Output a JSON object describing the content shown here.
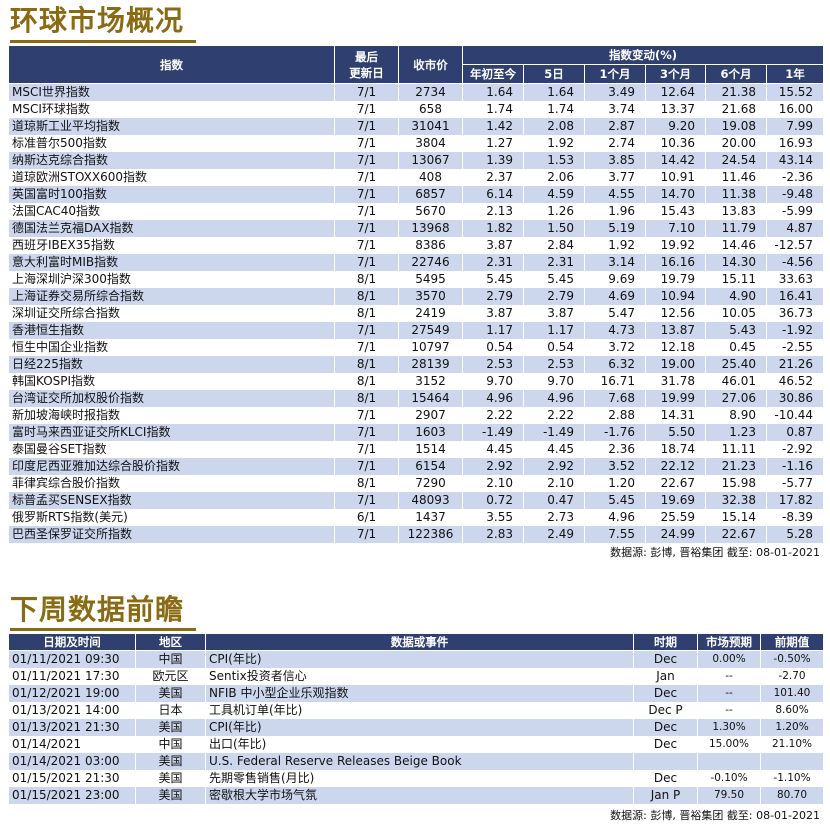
{
  "section1": {
    "title": "环球市场概况",
    "headers": {
      "index": "指数",
      "last_update": "最后\n更新日",
      "close": "收市价",
      "change_group": "指数变动(%)",
      "periods": [
        "年初至今",
        "5日",
        "1个月",
        "3个月",
        "6个月",
        "1年"
      ]
    },
    "rows": [
      {
        "name": "MSCI世界指数",
        "date": "7/1",
        "close": "2734",
        "v": [
          "1.64",
          "1.64",
          "3.49",
          "12.64",
          "21.38",
          "15.52"
        ]
      },
      {
        "name": "MSCI环球指数",
        "date": "7/1",
        "close": "658",
        "v": [
          "1.74",
          "1.74",
          "3.74",
          "13.37",
          "21.68",
          "16.00"
        ]
      },
      {
        "name": "道琼斯工业平均指数",
        "date": "7/1",
        "close": "31041",
        "v": [
          "1.42",
          "2.08",
          "2.87",
          "9.20",
          "19.08",
          "7.99"
        ]
      },
      {
        "name": "标准普尔500指数",
        "date": "7/1",
        "close": "3804",
        "v": [
          "1.27",
          "1.92",
          "2.74",
          "10.36",
          "20.00",
          "16.93"
        ]
      },
      {
        "name": "纳斯达克综合指数",
        "date": "7/1",
        "close": "13067",
        "v": [
          "1.39",
          "1.53",
          "3.85",
          "14.42",
          "24.54",
          "43.14"
        ]
      },
      {
        "name": "道琼欧洲STOXX600指数",
        "date": "7/1",
        "close": "408",
        "v": [
          "2.37",
          "2.06",
          "3.77",
          "10.91",
          "11.46",
          "-2.36"
        ]
      },
      {
        "name": "英国富时100指数",
        "date": "7/1",
        "close": "6857",
        "v": [
          "6.14",
          "4.59",
          "4.55",
          "14.70",
          "11.38",
          "-9.48"
        ]
      },
      {
        "name": "法国CAC40指数",
        "date": "7/1",
        "close": "5670",
        "v": [
          "2.13",
          "1.26",
          "1.96",
          "15.43",
          "13.83",
          "-5.99"
        ]
      },
      {
        "name": "德国法兰克福DAX指数",
        "date": "7/1",
        "close": "13968",
        "v": [
          "1.82",
          "1.50",
          "5.19",
          "7.10",
          "11.79",
          "4.87"
        ]
      },
      {
        "name": "西班牙IBEX35指数",
        "date": "7/1",
        "close": "8386",
        "v": [
          "3.87",
          "2.84",
          "1.92",
          "19.92",
          "14.46",
          "-12.57"
        ]
      },
      {
        "name": "意大利富时MIB指数",
        "date": "7/1",
        "close": "22746",
        "v": [
          "2.31",
          "2.31",
          "3.14",
          "16.16",
          "14.30",
          "-4.56"
        ]
      },
      {
        "name": "上海深圳沪深300指数",
        "date": "8/1",
        "close": "5495",
        "v": [
          "5.45",
          "5.45",
          "9.69",
          "19.79",
          "15.11",
          "33.63"
        ]
      },
      {
        "name": "上海证券交易所综合指数",
        "date": "8/1",
        "close": "3570",
        "v": [
          "2.79",
          "2.79",
          "4.69",
          "10.94",
          "4.90",
          "16.41"
        ]
      },
      {
        "name": "深圳证交所综合指数",
        "date": "8/1",
        "close": "2419",
        "v": [
          "3.87",
          "3.87",
          "5.47",
          "12.56",
          "10.05",
          "36.73"
        ]
      },
      {
        "name": "香港恒生指数",
        "date": "7/1",
        "close": "27549",
        "v": [
          "1.17",
          "1.17",
          "4.73",
          "13.87",
          "5.43",
          "-1.92"
        ]
      },
      {
        "name": "恒生中国企业指数",
        "date": "7/1",
        "close": "10797",
        "v": [
          "0.54",
          "0.54",
          "3.72",
          "12.18",
          "0.45",
          "-2.55"
        ]
      },
      {
        "name": "日经225指数",
        "date": "8/1",
        "close": "28139",
        "v": [
          "2.53",
          "2.53",
          "6.32",
          "19.00",
          "25.40",
          "21.26"
        ]
      },
      {
        "name": "韩国KOSPI指数",
        "date": "8/1",
        "close": "3152",
        "v": [
          "9.70",
          "9.70",
          "16.71",
          "31.78",
          "46.01",
          "46.52"
        ]
      },
      {
        "name": "台湾证交所加权股价指数",
        "date": "8/1",
        "close": "15464",
        "v": [
          "4.96",
          "4.96",
          "7.68",
          "19.99",
          "27.06",
          "30.86"
        ]
      },
      {
        "name": "新加坡海峡时报指数",
        "date": "7/1",
        "close": "2907",
        "v": [
          "2.22",
          "2.22",
          "2.88",
          "14.31",
          "8.90",
          "-10.44"
        ]
      },
      {
        "name": "富时马来西亚证交所KLCI指数",
        "date": "7/1",
        "close": "1603",
        "v": [
          "-1.49",
          "-1.49",
          "-1.76",
          "5.50",
          "1.23",
          "0.87"
        ]
      },
      {
        "name": "泰国曼谷SET指数",
        "date": "7/1",
        "close": "1514",
        "v": [
          "4.45",
          "4.45",
          "2.36",
          "18.74",
          "11.11",
          "-2.92"
        ]
      },
      {
        "name": "印度尼西亚雅加达综合股价指数",
        "date": "7/1",
        "close": "6154",
        "v": [
          "2.92",
          "2.92",
          "3.52",
          "22.12",
          "21.23",
          "-1.16"
        ]
      },
      {
        "name": "菲律宾综合股价指数",
        "date": "8/1",
        "close": "7290",
        "v": [
          "2.10",
          "2.10",
          "1.20",
          "22.67",
          "15.98",
          "-5.77"
        ]
      },
      {
        "name": "标普孟买SENSEX指数",
        "date": "7/1",
        "close": "48093",
        "v": [
          "0.72",
          "0.47",
          "5.45",
          "19.69",
          "32.38",
          "17.82"
        ]
      },
      {
        "name": "俄罗斯RTS指数(美元)",
        "date": "6/1",
        "close": "1437",
        "v": [
          "3.55",
          "2.73",
          "4.96",
          "25.59",
          "15.14",
          "-8.39"
        ]
      },
      {
        "name": "巴西圣保罗证交所指数",
        "date": "7/1",
        "close": "122386",
        "v": [
          "2.83",
          "2.49",
          "7.55",
          "24.99",
          "22.67",
          "5.28"
        ]
      }
    ],
    "source": "数据源: 彭博, 晋裕集团 截至: 08-01-2021"
  },
  "section2": {
    "title": "下周数据前瞻",
    "headers": [
      "日期及时间",
      "地区",
      "数据或事件",
      "时期",
      "市场预期",
      "前期值"
    ],
    "rows": [
      {
        "dt": "01/11/2021 09:30",
        "region": "中国",
        "event": "CPI(年比)",
        "period": "Dec",
        "exp": "0.00%",
        "prev": "-0.50%"
      },
      {
        "dt": "01/11/2021 17:30",
        "region": "欧元区",
        "event": "Sentix投资者信心",
        "period": "Jan",
        "exp": "--",
        "prev": "-2.70"
      },
      {
        "dt": "01/12/2021 19:00",
        "region": "美国",
        "event": "NFIB 中小型企业乐观指数",
        "period": "Dec",
        "exp": "--",
        "prev": "101.40"
      },
      {
        "dt": "01/13/2021 14:00",
        "region": "日本",
        "event": "工具机订单(年比)",
        "period": "Dec P",
        "exp": "--",
        "prev": "8.60%"
      },
      {
        "dt": "01/13/2021 21:30",
        "region": "美国",
        "event": "CPI(年比)",
        "period": "Dec",
        "exp": "1.30%",
        "prev": "1.20%"
      },
      {
        "dt": "01/14/2021",
        "region": "中国",
        "event": "出口(年比)",
        "period": "Dec",
        "exp": "15.00%",
        "prev": "21.10%"
      },
      {
        "dt": "01/14/2021 03:00",
        "region": "美国",
        "event": "U.S. Federal Reserve Releases Beige Book",
        "period": "",
        "exp": "",
        "prev": ""
      },
      {
        "dt": "01/15/2021 21:30",
        "region": "美国",
        "event": "先期零售销售(月比)",
        "period": "Dec",
        "exp": "-0.10%",
        "prev": "-1.10%"
      },
      {
        "dt": "01/15/2021 23:00",
        "region": "美国",
        "event": "密歇根大学市场气氛",
        "period": "Jan P",
        "exp": "79.50",
        "prev": "80.70"
      }
    ],
    "source": "数据源: 彭博, 晋裕集团 截至: 08-01-2021"
  }
}
